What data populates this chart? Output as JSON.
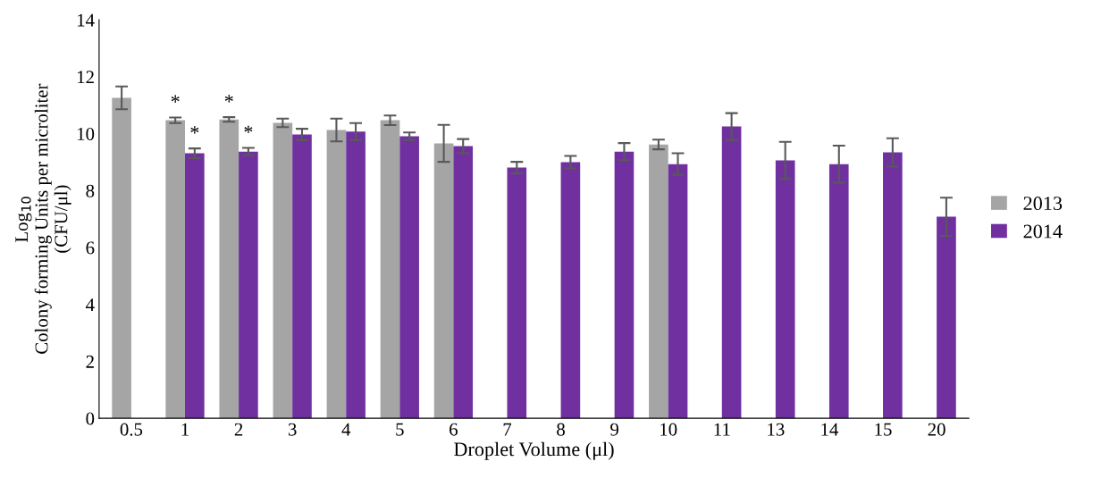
{
  "chart_data": {
    "type": "bar",
    "xlabel": "Droplet Volume (μl)",
    "ylabel": "Log$_{10}$\nColony forming Units per microliter\n(CFU/μl)",
    "categories": [
      "0.5",
      "1",
      "2",
      "3",
      "4",
      "5",
      "6",
      "7",
      "8",
      "9",
      "10",
      "11",
      "13",
      "14",
      "15",
      "20"
    ],
    "series": [
      {
        "name": "2013",
        "color": "#a5a5a5",
        "values": [
          11.26,
          10.47,
          10.5,
          10.38,
          10.13,
          10.47,
          9.66,
          null,
          null,
          null,
          9.62,
          null,
          null,
          null,
          null,
          null
        ],
        "errors": [
          0.4,
          0.1,
          0.08,
          0.15,
          0.4,
          0.17,
          0.65,
          null,
          null,
          null,
          0.17,
          null,
          null,
          null,
          null,
          null
        ]
      },
      {
        "name": "2014",
        "color": "#7030a0",
        "values": [
          null,
          9.31,
          9.37,
          9.97,
          10.07,
          9.91,
          9.56,
          8.81,
          9.0,
          9.37,
          8.93,
          10.25,
          9.06,
          8.93,
          9.34,
          7.08
        ],
        "errors": [
          null,
          0.17,
          0.13,
          0.2,
          0.3,
          0.13,
          0.25,
          0.2,
          0.22,
          0.3,
          0.38,
          0.47,
          0.65,
          0.65,
          0.5,
          0.67
        ]
      }
    ],
    "annotations": [
      {
        "text": "*",
        "x": "1",
        "y": 10.47
      },
      {
        "text": "*",
        "x": "1",
        "y": 9.31
      },
      {
        "text": "*",
        "x": "2",
        "y": 10.5
      },
      {
        "text": "*",
        "x": "2",
        "y": 9.37
      }
    ],
    "ylim": [
      0,
      14
    ],
    "yticks": [
      0,
      2,
      4,
      6,
      8,
      10,
      12,
      14
    ],
    "grid": false,
    "legend": "right"
  }
}
